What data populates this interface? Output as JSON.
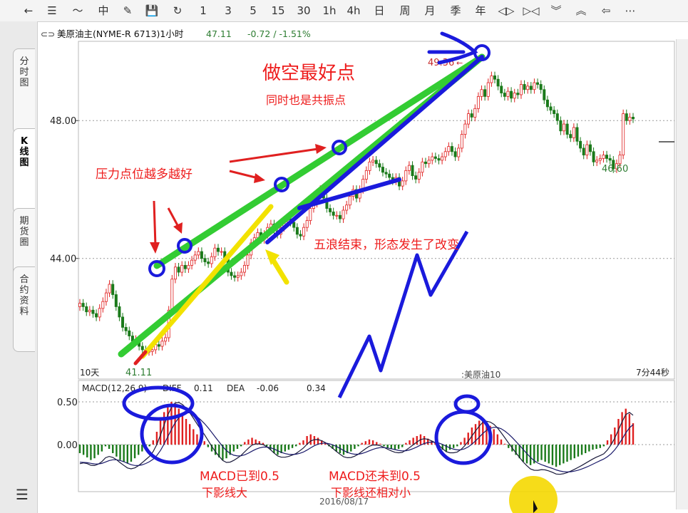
{
  "toolbar": {
    "items": [
      {
        "name": "back-icon",
        "glyph": "←"
      },
      {
        "name": "list-icon",
        "glyph": "☰"
      },
      {
        "name": "trend-icon",
        "glyph": "〜"
      },
      {
        "name": "candle-icon",
        "glyph": "中"
      },
      {
        "name": "edit-icon",
        "glyph": "✎"
      },
      {
        "name": "save-icon",
        "glyph": "💾"
      },
      {
        "name": "refresh-icon",
        "glyph": "↻"
      },
      {
        "name": "period-1",
        "glyph": "1"
      },
      {
        "name": "period-3",
        "glyph": "3"
      },
      {
        "name": "period-5",
        "glyph": "5"
      },
      {
        "name": "period-15",
        "glyph": "15"
      },
      {
        "name": "period-30",
        "glyph": "30"
      },
      {
        "name": "period-1h",
        "glyph": "1h"
      },
      {
        "name": "period-4h",
        "glyph": "4h"
      },
      {
        "name": "period-day",
        "glyph": "日"
      },
      {
        "name": "period-week",
        "glyph": "周"
      },
      {
        "name": "period-month",
        "glyph": "月"
      },
      {
        "name": "period-season",
        "glyph": "季"
      },
      {
        "name": "period-year",
        "glyph": "年"
      },
      {
        "name": "expand-icon",
        "glyph": "◁▷"
      },
      {
        "name": "shrink-icon",
        "glyph": "▷◁"
      },
      {
        "name": "scroll-down-icon",
        "glyph": "︾"
      },
      {
        "name": "scroll-up-icon",
        "glyph": "︽"
      },
      {
        "name": "collapse-left-icon",
        "glyph": "⇦"
      },
      {
        "name": "more-icon",
        "glyph": "⋯"
      }
    ]
  },
  "side_tabs": [
    {
      "label": "分时图",
      "active": false
    },
    {
      "label": "K线图",
      "active": true
    },
    {
      "label": "期货圈",
      "active": false
    },
    {
      "label": "合约资料",
      "active": false
    }
  ],
  "header": {
    "instrument": "美原油主(NYME-R 6713)1小时",
    "price": "47.11",
    "change": "-0.72 / -1.51%"
  },
  "main_labels": {
    "high_price": "49.36",
    "low_right": "46.60",
    "low_left": "41.11",
    "days": "10天",
    "instrument_short": ":美原油10",
    "timer": "7分44秒",
    "date": "2016/08/17"
  },
  "macd_header": {
    "params": "MACD(12,26,9)",
    "diff_label": "DIFF",
    "diff_value": "0.11",
    "dea_label": "DEA",
    "dea_value": "-0.06",
    "macd_value": "0.34"
  },
  "annotations": {
    "title": "做空最好点",
    "subtitle": "同时也是共振点",
    "pressure": "压力点位越多越好",
    "five_wave": "五浪结束，形态发生了改变",
    "macd_left_1": "MACD已到0.5",
    "macd_left_2": "下影线大",
    "macd_right_1": "MACD还未到0.5",
    "macd_right_2": "下影线还相对小"
  },
  "colors": {
    "up": "#e02020",
    "down": "#1a7a1a",
    "green_line": "#33cc33",
    "blue_line": "#1a1adc",
    "yellow_line": "#f2e200",
    "red_text": "#ee1c1c",
    "price_green": "#2e7d32"
  },
  "chart_data": [
    {
      "type": "candlestick",
      "title": "美原油主(NYME-R 6713)1小时",
      "y_ticks": [
        44.0,
        48.0
      ],
      "y_tick_labels": [
        "44.00",
        "48.00"
      ],
      "ylim": [
        40.5,
        50.3
      ],
      "grid": true,
      "close": [
        42.7,
        42.6,
        42.45,
        42.5,
        42.4,
        42.3,
        42.55,
        42.75,
        43.0,
        43.25,
        42.95,
        42.6,
        42.3,
        42.0,
        41.9,
        41.75,
        41.6,
        41.65,
        41.45,
        41.35,
        41.3,
        41.3,
        41.35,
        41.5,
        41.45,
        41.6,
        41.7,
        42.5,
        43.4,
        43.75,
        43.6,
        43.8,
        43.7,
        43.8,
        43.95,
        44.1,
        44.2,
        44.0,
        43.9,
        43.85,
        44.05,
        44.3,
        44.2,
        44.2,
        44.0,
        43.6,
        43.5,
        43.45,
        43.5,
        43.6,
        43.8,
        44.1,
        44.45,
        44.6,
        44.75,
        44.55,
        44.7,
        44.9,
        45.0,
        44.8,
        44.7,
        44.9,
        45.1,
        45.15,
        45.05,
        44.9,
        44.7,
        44.65,
        44.9,
        45.1,
        45.45,
        45.6,
        45.9,
        46.0,
        45.75,
        45.45,
        45.35,
        45.25,
        45.25,
        45.15,
        45.4,
        45.55,
        45.8,
        46.0,
        45.75,
        46.0,
        46.3,
        46.55,
        46.8,
        46.85,
        46.75,
        46.65,
        46.5,
        46.45,
        46.35,
        46.25,
        46.35,
        46.1,
        46.25,
        46.55,
        46.7,
        46.4,
        46.3,
        46.5,
        46.8,
        46.75,
        46.85,
        46.95,
        46.9,
        46.85,
        46.95,
        47.1,
        47.25,
        47.1,
        46.95,
        47.2,
        47.6,
        47.9,
        48.2,
        48.1,
        48.35,
        48.7,
        48.9,
        48.7,
        49.1,
        49.3,
        49.2,
        49.0,
        48.8,
        48.7,
        48.85,
        48.65,
        48.8,
        48.75,
        49.05,
        48.9,
        49.0,
        48.9,
        49.1,
        49.05,
        48.9,
        48.6,
        48.4,
        48.3,
        48.2,
        48.0,
        47.7,
        47.9,
        47.6,
        47.5,
        47.8,
        47.4,
        47.2,
        47.0,
        47.3,
        47.1,
        46.8,
        46.85,
        46.9,
        47.0,
        46.9,
        46.85,
        46.6,
        46.75,
        47.0,
        48.2,
        48.0,
        48.1,
        48.05
      ]
    },
    {
      "type": "bar",
      "title": "MACD(12,26,9)",
      "y_ticks": [
        0.0,
        0.5
      ],
      "y_tick_labels": [
        "0.00",
        "0.50"
      ],
      "ylim": [
        -0.55,
        0.75
      ],
      "series": [
        {
          "name": "DIFF",
          "value_shown": 0.11
        },
        {
          "name": "DEA",
          "value_shown": -0.06
        }
      ],
      "histogram": [
        -0.1,
        -0.12,
        -0.15,
        -0.18,
        -0.16,
        -0.12,
        -0.08,
        -0.02,
        -0.05,
        -0.1,
        -0.14,
        -0.18,
        -0.2,
        -0.22,
        -0.2,
        -0.16,
        -0.12,
        -0.08,
        -0.05,
        -0.02,
        0.05,
        0.15,
        0.28,
        0.38,
        0.46,
        0.5,
        0.48,
        0.42,
        0.36,
        0.3,
        0.24,
        0.18,
        0.12,
        0.08,
        0.04,
        -0.03,
        -0.08,
        -0.12,
        -0.15,
        -0.18,
        -0.16,
        -0.12,
        -0.08,
        -0.05,
        -0.02,
        0.03,
        0.06,
        0.08,
        0.06,
        0.04,
        0.02,
        -0.02,
        -0.06,
        -0.1,
        -0.12,
        -0.1,
        -0.08,
        -0.06,
        -0.04,
        -0.02,
        0.02,
        0.05,
        0.1,
        0.12,
        0.1,
        0.08,
        0.05,
        0.02,
        -0.02,
        -0.05,
        -0.08,
        -0.1,
        -0.12,
        -0.1,
        -0.08,
        -0.05,
        -0.02,
        0.02,
        0.04,
        0.06,
        0.05,
        0.03,
        0.01,
        -0.02,
        -0.04,
        -0.05,
        -0.06,
        -0.05,
        -0.03,
        0.02,
        0.05,
        0.08,
        0.1,
        0.12,
        0.1,
        0.07,
        0.04,
        0.02,
        -0.02,
        -0.06,
        -0.08,
        -0.06,
        -0.04,
        -0.02,
        0.03,
        0.08,
        0.14,
        0.2,
        0.24,
        0.28,
        0.3,
        0.26,
        0.22,
        0.18,
        0.12,
        0.06,
        0.01,
        -0.04,
        -0.08,
        -0.12,
        -0.16,
        -0.2,
        -0.22,
        -0.24,
        -0.22,
        -0.2,
        -0.18,
        -0.2,
        -0.22,
        -0.24,
        -0.26,
        -0.24,
        -0.22,
        -0.2,
        -0.18,
        -0.16,
        -0.14,
        -0.12,
        -0.1,
        -0.08,
        -0.06,
        -0.05,
        -0.04,
        -0.02,
        0.05,
        0.12,
        0.2,
        0.3,
        0.38,
        0.42,
        0.36,
        0.25
      ]
    }
  ]
}
